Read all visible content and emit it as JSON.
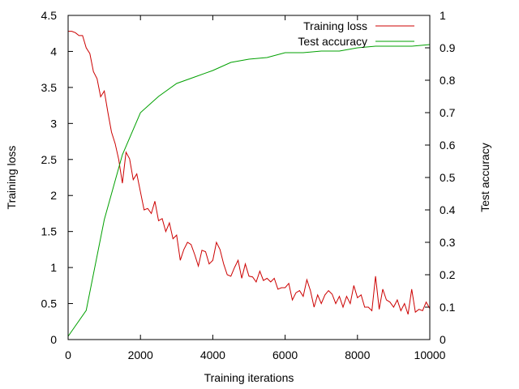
{
  "chart_data": {
    "type": "line",
    "title": "",
    "xlabel": "Training iterations",
    "ylabel_left": "Training loss",
    "ylabel_right": "Test accuracy",
    "xlim": [
      0,
      10000
    ],
    "ylim_left": [
      0,
      4.5
    ],
    "ylim_right": [
      0,
      1
    ],
    "x_ticks": [
      0,
      2000,
      4000,
      6000,
      8000,
      10000
    ],
    "y_ticks_left": [
      0,
      0.5,
      1,
      1.5,
      2,
      2.5,
      3,
      3.5,
      4,
      4.5
    ],
    "y_ticks_right": [
      0,
      0.1,
      0.2,
      0.3,
      0.4,
      0.5,
      0.6,
      0.7,
      0.8,
      0.9,
      1
    ],
    "x_tick_labels": [
      "0",
      "2000",
      "4000",
      "6000",
      "8000",
      "10000"
    ],
    "y_tick_labels_left": [
      "0",
      "0.5",
      "1",
      "1.5",
      "2",
      "2.5",
      "3",
      "3.5",
      "4",
      "4.5"
    ],
    "y_tick_labels_right": [
      "0",
      "0.1",
      "0.2",
      "0.3",
      "0.4",
      "0.5",
      "0.6",
      "0.7",
      "0.8",
      "0.9",
      "1"
    ],
    "grid": false,
    "legend_position": "top-right",
    "series": [
      {
        "name": "Training loss",
        "axis": "left",
        "color": "#cc0000",
        "x": [
          0,
          100,
          200,
          300,
          400,
          500,
          600,
          700,
          800,
          900,
          1000,
          1100,
          1200,
          1300,
          1400,
          1500,
          1600,
          1700,
          1800,
          1900,
          2000,
          2100,
          2200,
          2300,
          2400,
          2500,
          2600,
          2700,
          2800,
          2900,
          3000,
          3100,
          3200,
          3300,
          3400,
          3500,
          3600,
          3700,
          3800,
          3900,
          4000,
          4100,
          4200,
          4300,
          4400,
          4500,
          4600,
          4700,
          4800,
          4900,
          5000,
          5100,
          5200,
          5300,
          5400,
          5500,
          5600,
          5700,
          5800,
          5900,
          6000,
          6100,
          6200,
          6300,
          6400,
          6500,
          6600,
          6700,
          6800,
          6900,
          7000,
          7100,
          7200,
          7300,
          7400,
          7500,
          7600,
          7700,
          7800,
          7900,
          8000,
          8100,
          8200,
          8300,
          8400,
          8500,
          8600,
          8700,
          8800,
          8900,
          9000,
          9100,
          9200,
          9300,
          9400,
          9500,
          9600,
          9700,
          9800,
          9900,
          10000
        ],
        "values": [
          4.28,
          4.28,
          4.26,
          4.22,
          4.22,
          4.05,
          3.97,
          3.72,
          3.62,
          3.37,
          3.45,
          3.15,
          2.88,
          2.72,
          2.5,
          2.17,
          2.6,
          2.51,
          2.22,
          2.3,
          2.05,
          1.8,
          1.82,
          1.75,
          1.92,
          1.65,
          1.68,
          1.5,
          1.62,
          1.4,
          1.45,
          1.1,
          1.25,
          1.35,
          1.32,
          1.18,
          1.02,
          1.24,
          1.22,
          1.05,
          1.1,
          1.35,
          1.25,
          1.05,
          0.9,
          0.88,
          1.0,
          1.1,
          0.85,
          1.05,
          0.88,
          0.87,
          0.8,
          0.95,
          0.82,
          0.85,
          0.8,
          0.85,
          0.7,
          0.72,
          0.72,
          0.78,
          0.55,
          0.65,
          0.68,
          0.6,
          0.83,
          0.68,
          0.45,
          0.62,
          0.5,
          0.62,
          0.68,
          0.63,
          0.5,
          0.6,
          0.45,
          0.6,
          0.5,
          0.75,
          0.58,
          0.62,
          0.45,
          0.45,
          0.4,
          0.88,
          0.42,
          0.7,
          0.55,
          0.52,
          0.45,
          0.55,
          0.4,
          0.5,
          0.35,
          0.7,
          0.38,
          0.42,
          0.4,
          0.52,
          0.43
        ]
      },
      {
        "name": "Test accuracy",
        "axis": "right",
        "color": "#00a000",
        "x": [
          0,
          500,
          1000,
          1500,
          2000,
          2500,
          3000,
          3500,
          4000,
          4500,
          5000,
          5500,
          6000,
          6500,
          7000,
          7500,
          8000,
          8500,
          9000,
          9500,
          10000
        ],
        "values": [
          0.01,
          0.09,
          0.37,
          0.57,
          0.7,
          0.75,
          0.79,
          0.81,
          0.83,
          0.855,
          0.865,
          0.87,
          0.885,
          0.885,
          0.89,
          0.89,
          0.9,
          0.905,
          0.905,
          0.905,
          0.91
        ]
      }
    ]
  }
}
